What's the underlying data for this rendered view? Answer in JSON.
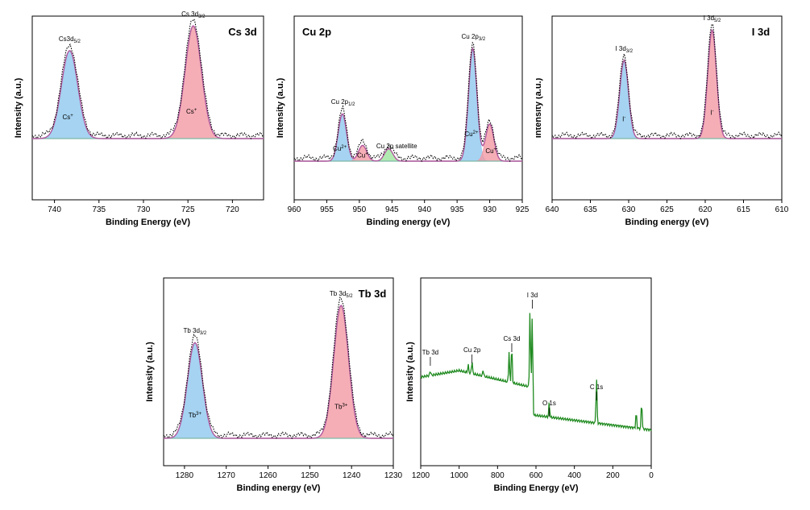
{
  "colors": {
    "blue": "#8ec8ee",
    "red": "#f29aa4",
    "green": "#9ee59c",
    "teal": "#7fb8a6",
    "envelope": "#b0579e",
    "survey": "#1f8a1f",
    "dots": "#000000"
  },
  "chart_data": [
    {
      "id": "cs3d",
      "type": "line",
      "title": "Cs 3d",
      "xlabel": "Binding Energy (eV)",
      "ylabel": "Intensity (a.u.)",
      "xlim": [
        742.5,
        716.5
      ],
      "xticks": [
        740,
        735,
        730,
        725,
        720
      ],
      "annotations": [
        {
          "text": "Cs3d",
          "sub": "5/2",
          "x": 738.3
        },
        {
          "text": "Cs 3d",
          "sub": "3/2",
          "x": 724.4
        },
        {
          "text": "Cs",
          "sup": "+",
          "x": 738.5,
          "region": "inside"
        },
        {
          "text": "Cs",
          "sup": "+",
          "x": 724.6,
          "region": "inside"
        }
      ],
      "peaks": [
        {
          "label": "Cs 3d5/2",
          "center": 738.3,
          "height": 0.78,
          "color": "blue"
        },
        {
          "label": "Cs 3d3/2",
          "center": 724.4,
          "height": 1.0,
          "color": "red"
        }
      ]
    },
    {
      "id": "cu2p",
      "type": "line",
      "title": "Cu 2p",
      "xlabel": "Binding energy (eV)",
      "ylabel": "Intensity (a.u.)",
      "xlim": [
        960,
        925
      ],
      "xticks": [
        960,
        955,
        950,
        945,
        940,
        935,
        930,
        925
      ],
      "annotations": [
        {
          "text": "Cu 2p",
          "sub": "1/2",
          "x": 952.5
        },
        {
          "text": "Cu 2p",
          "sub": "3/2",
          "x": 932.5
        },
        {
          "text": "Cu 2p satellite",
          "x": 945.5
        },
        {
          "text": "Cu",
          "sup": "2+",
          "x": 953,
          "region": "inside"
        },
        {
          "text": "Cu",
          "sup": "+",
          "x": 949.5,
          "region": "inside"
        },
        {
          "text": "Cu",
          "sup": "2+",
          "x": 932.8,
          "region": "inside"
        },
        {
          "text": "Cu",
          "sup": "+",
          "x": 929.8,
          "region": "inside"
        }
      ],
      "peaks": [
        {
          "label": "Cu2+ 2p1/2",
          "center": 952.6,
          "height": 0.42,
          "color": "blue"
        },
        {
          "label": "Cu+ 2p1/2",
          "center": 949.5,
          "height": 0.14,
          "color": "red"
        },
        {
          "label": "satellite",
          "center": 945.5,
          "height": 0.11,
          "color": "green"
        },
        {
          "label": "Cu2+ 2p3/2",
          "center": 932.6,
          "height": 1.0,
          "color": "blue"
        },
        {
          "label": "Cu+ 2p3/2",
          "center": 930.0,
          "height": 0.33,
          "color": "red"
        }
      ]
    },
    {
      "id": "i3d",
      "type": "line",
      "title": "I 3d",
      "xlabel": "Binding energy (eV)",
      "ylabel": "Intensity (a.u.)",
      "xlim": [
        640,
        610
      ],
      "xticks": [
        640,
        635,
        630,
        625,
        620,
        615,
        610
      ],
      "annotations": [
        {
          "text": "I 3d",
          "sub": "3/2",
          "x": 630.6
        },
        {
          "text": "I 3d",
          "sub": "5/2",
          "x": 619.1
        },
        {
          "text": "I",
          "sup": "-",
          "x": 630.6,
          "region": "inside"
        },
        {
          "text": "I",
          "sup": "-",
          "x": 619.1,
          "region": "inside"
        }
      ],
      "peaks": [
        {
          "label": "I 3d3/2",
          "center": 630.6,
          "height": 0.72,
          "color": "blue"
        },
        {
          "label": "I 3d5/2",
          "center": 619.1,
          "height": 1.0,
          "color": "red"
        }
      ]
    },
    {
      "id": "tb3d",
      "type": "line",
      "title": "Tb 3d",
      "xlabel": "Binding energy (eV)",
      "ylabel": "Intensity (a.u.)",
      "xlim": [
        1285,
        1230
      ],
      "xticks": [
        1280,
        1270,
        1260,
        1250,
        1240,
        1230
      ],
      "annotations": [
        {
          "text": "Tb 3d",
          "sub": "3/2",
          "x": 1277.5
        },
        {
          "text": "Tb 3d",
          "sub": "5/2",
          "x": 1242.5
        },
        {
          "text": "Tb",
          "sup": "3+",
          "x": 1277.5,
          "region": "inside"
        },
        {
          "text": "Tb",
          "sup": "3+",
          "x": 1242.5,
          "region": "inside"
        }
      ],
      "peaks": [
        {
          "label": "Tb 3d3/2",
          "center": 1277.5,
          "height": 0.72,
          "color": "blue"
        },
        {
          "label": "Tb 3d5/2",
          "center": 1242.5,
          "height": 1.0,
          "color": "red"
        }
      ]
    },
    {
      "id": "survey",
      "type": "line",
      "title": "",
      "xlabel": "Binding Energy (eV)",
      "ylabel": "Intensity (a.u.)",
      "xlim": [
        1200,
        0
      ],
      "xticks": [
        1200,
        1000,
        800,
        600,
        400,
        200,
        0
      ],
      "labels": [
        {
          "text": "Tb 3d",
          "x": 1150
        },
        {
          "text": "Cu 2p",
          "x": 933
        },
        {
          "text": "Cs 3d",
          "x": 726
        },
        {
          "text": "I 3d",
          "x": 619
        },
        {
          "text": "O 1s",
          "x": 531
        },
        {
          "text": "C 1s",
          "x": 285
        }
      ]
    }
  ]
}
